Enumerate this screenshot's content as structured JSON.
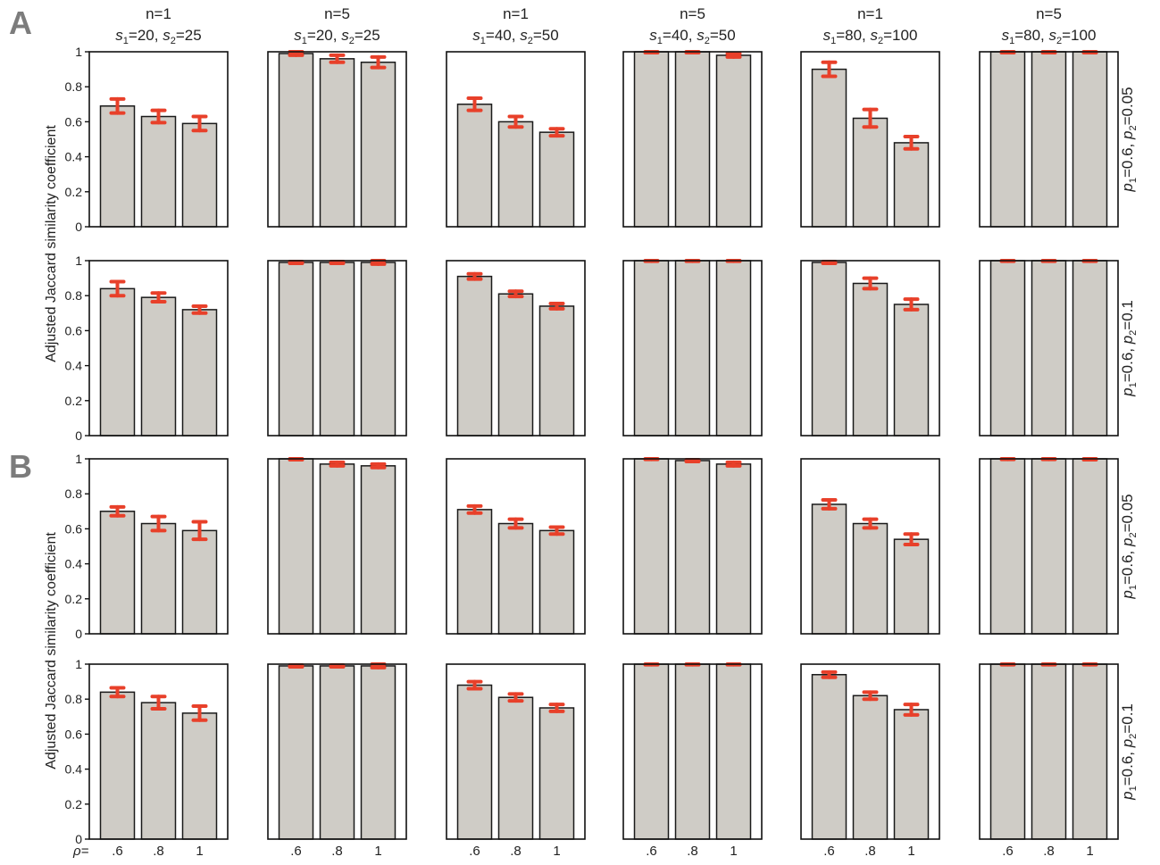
{
  "figure": {
    "panel_labels": [
      "A",
      "B"
    ],
    "ylabel": "Adjusted Jaccard similarity coefficient",
    "rho_label": "ρ=",
    "column_titles": [
      {
        "n": "n=1",
        "s1": "20",
        "s2": "25"
      },
      {
        "n": "n=5",
        "s1": "20",
        "s2": "25"
      },
      {
        "n": "n=1",
        "s1": "40",
        "s2": "50"
      },
      {
        "n": "n=5",
        "s1": "40",
        "s2": "50"
      },
      {
        "n": "n=1",
        "s1": "80",
        "s2": "100"
      },
      {
        "n": "n=5",
        "s1": "80",
        "s2": "100"
      }
    ],
    "row_labels": [
      {
        "p1": "0.6",
        "p2": "0.05"
      },
      {
        "p1": "0.6",
        "p2": "0.1"
      },
      {
        "p1": "0.6",
        "p2": "0.05"
      },
      {
        "p1": "0.6",
        "p2": "0.1"
      }
    ],
    "colors": {
      "bar_fill": "#cfccc6",
      "bar_stroke": "#1a1a1a",
      "error": "#e8402a",
      "axis": "#111111"
    }
  },
  "chart_data": {
    "type": "bar",
    "categories": [
      ".6",
      ".8",
      "1"
    ],
    "ylim": [
      0,
      1
    ],
    "yticks": [
      "0",
      "0.2",
      "0.4",
      "0.6",
      "0.8",
      "1"
    ],
    "panels": [
      {
        "panel": "A",
        "row": 0,
        "col": 0,
        "values": [
          0.69,
          0.63,
          0.59
        ],
        "errors": [
          0.04,
          0.035,
          0.04
        ]
      },
      {
        "panel": "A",
        "row": 0,
        "col": 1,
        "values": [
          0.99,
          0.96,
          0.94
        ],
        "errors": [
          0.01,
          0.02,
          0.03
        ]
      },
      {
        "panel": "A",
        "row": 0,
        "col": 2,
        "values": [
          0.7,
          0.6,
          0.54
        ],
        "errors": [
          0.035,
          0.03,
          0.02
        ]
      },
      {
        "panel": "A",
        "row": 0,
        "col": 3,
        "values": [
          1.0,
          1.0,
          0.98
        ],
        "errors": [
          0.005,
          0.005,
          0.01
        ]
      },
      {
        "panel": "A",
        "row": 0,
        "col": 4,
        "values": [
          0.9,
          0.62,
          0.48
        ],
        "errors": [
          0.04,
          0.05,
          0.035
        ]
      },
      {
        "panel": "A",
        "row": 0,
        "col": 5,
        "values": [
          1.0,
          1.0,
          1.0
        ],
        "errors": [
          0.005,
          0.005,
          0.005
        ]
      },
      {
        "panel": "A",
        "row": 1,
        "col": 0,
        "values": [
          0.84,
          0.79,
          0.72
        ],
        "errors": [
          0.04,
          0.025,
          0.02
        ]
      },
      {
        "panel": "A",
        "row": 1,
        "col": 1,
        "values": [
          0.99,
          0.99,
          0.99
        ],
        "errors": [
          0.005,
          0.005,
          0.01
        ]
      },
      {
        "panel": "A",
        "row": 1,
        "col": 2,
        "values": [
          0.91,
          0.81,
          0.74
        ],
        "errors": [
          0.015,
          0.015,
          0.015
        ]
      },
      {
        "panel": "A",
        "row": 1,
        "col": 3,
        "values": [
          1.0,
          1.0,
          1.0
        ],
        "errors": [
          0.003,
          0.003,
          0.003
        ]
      },
      {
        "panel": "A",
        "row": 1,
        "col": 4,
        "values": [
          0.99,
          0.87,
          0.75
        ],
        "errors": [
          0.005,
          0.03,
          0.03
        ]
      },
      {
        "panel": "A",
        "row": 1,
        "col": 5,
        "values": [
          1.0,
          1.0,
          1.0
        ],
        "errors": [
          0.003,
          0.003,
          0.003
        ]
      },
      {
        "panel": "B",
        "row": 2,
        "col": 0,
        "values": [
          0.7,
          0.63,
          0.59
        ],
        "errors": [
          0.025,
          0.04,
          0.05
        ]
      },
      {
        "panel": "B",
        "row": 2,
        "col": 1,
        "values": [
          1.0,
          0.97,
          0.96
        ],
        "errors": [
          0.005,
          0.01,
          0.01
        ]
      },
      {
        "panel": "B",
        "row": 2,
        "col": 2,
        "values": [
          0.71,
          0.63,
          0.59
        ],
        "errors": [
          0.02,
          0.025,
          0.02
        ]
      },
      {
        "panel": "B",
        "row": 2,
        "col": 3,
        "values": [
          1.0,
          0.99,
          0.97
        ],
        "errors": [
          0.003,
          0.005,
          0.01
        ]
      },
      {
        "panel": "B",
        "row": 2,
        "col": 4,
        "values": [
          0.74,
          0.63,
          0.54
        ],
        "errors": [
          0.025,
          0.025,
          0.03
        ]
      },
      {
        "panel": "B",
        "row": 2,
        "col": 5,
        "values": [
          1.0,
          1.0,
          1.0
        ],
        "errors": [
          0.003,
          0.003,
          0.005
        ]
      },
      {
        "panel": "B",
        "row": 3,
        "col": 0,
        "values": [
          0.84,
          0.78,
          0.72
        ],
        "errors": [
          0.025,
          0.035,
          0.04
        ]
      },
      {
        "panel": "B",
        "row": 3,
        "col": 1,
        "values": [
          0.99,
          0.99,
          0.99
        ],
        "errors": [
          0.005,
          0.005,
          0.01
        ]
      },
      {
        "panel": "B",
        "row": 3,
        "col": 2,
        "values": [
          0.88,
          0.81,
          0.75
        ],
        "errors": [
          0.02,
          0.02,
          0.02
        ]
      },
      {
        "panel": "B",
        "row": 3,
        "col": 3,
        "values": [
          1.0,
          1.0,
          1.0
        ],
        "errors": [
          0.003,
          0.003,
          0.003
        ]
      },
      {
        "panel": "B",
        "row": 3,
        "col": 4,
        "values": [
          0.94,
          0.82,
          0.74
        ],
        "errors": [
          0.015,
          0.02,
          0.03
        ]
      },
      {
        "panel": "B",
        "row": 3,
        "col": 5,
        "values": [
          1.0,
          1.0,
          1.0
        ],
        "errors": [
          0.003,
          0.003,
          0.003
        ]
      }
    ]
  }
}
